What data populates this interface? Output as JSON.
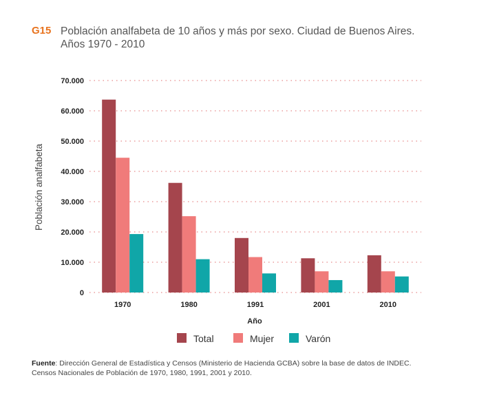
{
  "figure": {
    "code": "G15",
    "title_line1": "Población analfabeta de 10 años y más por sexo. Ciudad de Buenos Aires.",
    "title_line2": "Años 1970 - 2010"
  },
  "source": {
    "label": "Fuente",
    "text": ": Dirección General de Estadística y Censos (Ministerio de Hacienda GCBA) sobre la base de datos de INDEC.",
    "line2": "Censos Nacionales de Población de 1970, 1980, 1991, 2001 y 2010."
  },
  "colors": {
    "Total": "#a5454d",
    "Mujer": "#f07b7a",
    "Varon": "#10a6a8",
    "grid": "#e06b6b"
  },
  "chart_data": {
    "type": "bar",
    "title": "Población analfabeta de 10 años y más por sexo. Ciudad de Buenos Aires. Años 1970 - 2010",
    "xlabel": "Año",
    "ylabel": "Población analfabeta",
    "categories": [
      "1970",
      "1980",
      "1991",
      "2001",
      "2010"
    ],
    "series": [
      {
        "name": "Total",
        "values": [
          63700,
          36200,
          18000,
          11300,
          12300
        ]
      },
      {
        "name": "Mujer",
        "values": [
          44500,
          25200,
          11700,
          7000,
          7000
        ]
      },
      {
        "name": "Varón",
        "values": [
          19300,
          11000,
          6300,
          4100,
          5300
        ]
      }
    ],
    "ylim": [
      0,
      70000
    ],
    "yticks": [
      0,
      10000,
      20000,
      30000,
      40000,
      50000,
      60000,
      70000
    ],
    "ytick_labels": [
      "0",
      "10.000",
      "20.000",
      "30.000",
      "40.000",
      "50.000",
      "60.000",
      "70.000"
    ],
    "grid": true,
    "legend_position": "bottom"
  }
}
